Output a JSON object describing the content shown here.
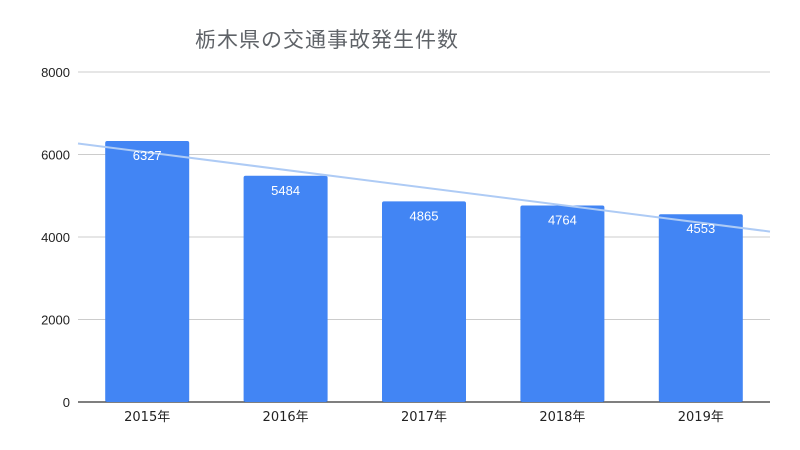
{
  "chart_data": {
    "type": "bar",
    "title": "栃木県の交通事故発生件数",
    "xlabel": "",
    "ylabel": "",
    "categories": [
      "2015年",
      "2016年",
      "2017年",
      "2018年",
      "2019年"
    ],
    "series": [
      {
        "values": [
          6327,
          5484,
          4865,
          4764,
          4553
        ]
      }
    ],
    "data_labels": [
      "6327",
      "5484",
      "4865",
      "4764",
      "4553"
    ],
    "ylim": [
      0,
      8000
    ],
    "yticks": [
      0,
      2000,
      4000,
      6000,
      8000
    ],
    "ytick_labels": [
      "0",
      "2000",
      "4000",
      "6000",
      "8000"
    ],
    "trendline": {
      "type": "linear",
      "color": "#aecbf5"
    },
    "grid": true,
    "legend": "none",
    "bar_color": "#4285f4"
  }
}
